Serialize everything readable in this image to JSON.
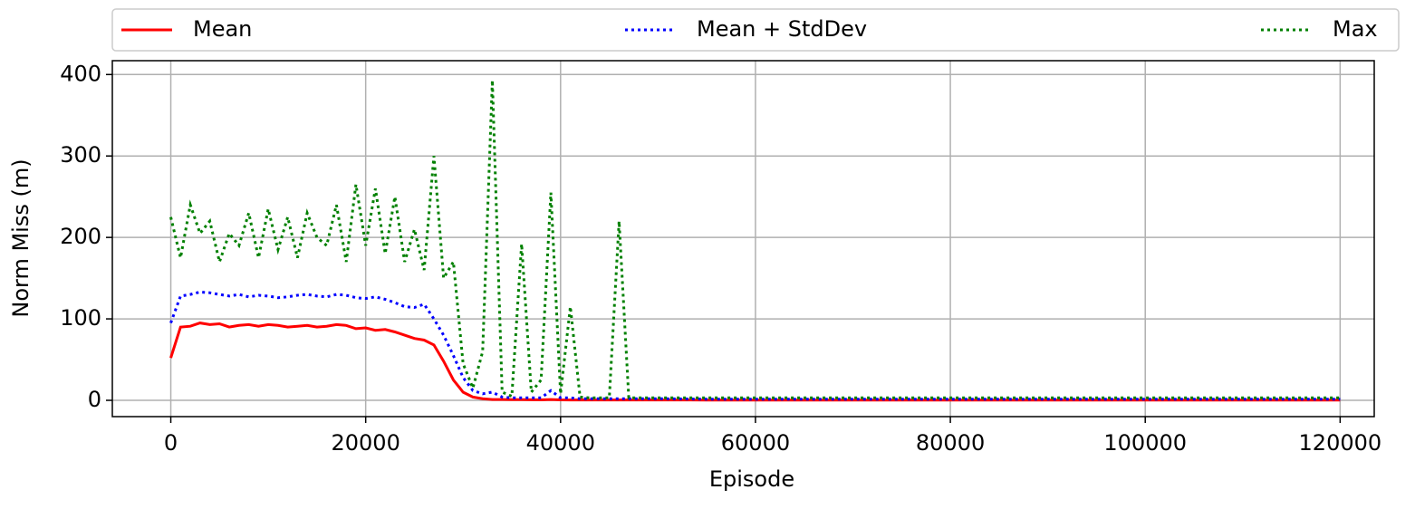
{
  "chart_data": {
    "type": "line",
    "x_label": "Episode",
    "y_label": "Norm Miss (m)",
    "x": [
      0,
      1000,
      2000,
      3000,
      4000,
      5000,
      6000,
      7000,
      8000,
      9000,
      10000,
      11000,
      12000,
      13000,
      14000,
      15000,
      16000,
      17000,
      18000,
      19000,
      20000,
      21000,
      22000,
      23000,
      24000,
      25000,
      26000,
      27000,
      28000,
      29000,
      30000,
      31000,
      32000,
      33000,
      34000,
      35000,
      36000,
      37000,
      38000,
      39000,
      40000,
      41000,
      42000,
      43000,
      44000,
      45000,
      46000,
      47000,
      48000,
      49000,
      50000,
      55000,
      60000,
      65000,
      70000,
      75000,
      80000,
      85000,
      90000,
      95000,
      100000,
      105000,
      110000,
      115000,
      120000
    ],
    "series": [
      {
        "name": "Mean",
        "color": "#ff0000",
        "style": "solid",
        "values": [
          52,
          90,
          91,
          95,
          93,
          94,
          90,
          92,
          93,
          91,
          93,
          92,
          90,
          91,
          92,
          90,
          91,
          93,
          92,
          88,
          89,
          86,
          87,
          84,
          80,
          76,
          74,
          68,
          48,
          25,
          10,
          4,
          2,
          1,
          1,
          0.8,
          0.8,
          0.7,
          0.6,
          1,
          0.6,
          0.5,
          0.5,
          0.5,
          0.5,
          0.5,
          0.5,
          0.5,
          0.5,
          0.5,
          0.5,
          0.3,
          0.3,
          0.3,
          0.3,
          0.3,
          0.3,
          0.3,
          0.3,
          0.3,
          0.3,
          0.3,
          0.3,
          0.3,
          0.3
        ]
      },
      {
        "name": "Mean + StdDev",
        "color": "#0000ff",
        "style": "dotted",
        "values": [
          95,
          128,
          130,
          133,
          132,
          130,
          128,
          130,
          127,
          129,
          128,
          126,
          127,
          129,
          130,
          128,
          127,
          130,
          129,
          126,
          125,
          127,
          124,
          120,
          115,
          114,
          118,
          100,
          80,
          55,
          28,
          12,
          8,
          10,
          4,
          3,
          3,
          3,
          3,
          12,
          3,
          3,
          2,
          2,
          2,
          2,
          2,
          2,
          2,
          2,
          2,
          1.5,
          1.5,
          1.5,
          1.5,
          1.5,
          1.5,
          1.5,
          1.5,
          1.5,
          1.5,
          1.5,
          1.5,
          1.5,
          1.5
        ]
      },
      {
        "name": "Max",
        "color": "#008000",
        "style": "dotted",
        "values": [
          225,
          175,
          240,
          205,
          220,
          170,
          205,
          190,
          230,
          175,
          235,
          185,
          225,
          175,
          230,
          200,
          190,
          240,
          170,
          265,
          190,
          260,
          180,
          250,
          170,
          210,
          160,
          300,
          150,
          170,
          45,
          15,
          60,
          393,
          10,
          5,
          192,
          10,
          25,
          255,
          8,
          115,
          4,
          3,
          3,
          3,
          220,
          3,
          3,
          3,
          3,
          3,
          3,
          3,
          3,
          3,
          3,
          3,
          3,
          3,
          3,
          3,
          3,
          3,
          3
        ]
      }
    ],
    "xlim": [
      -6000,
      123500
    ],
    "xticks": [
      0,
      20000,
      40000,
      60000,
      80000,
      100000,
      120000
    ],
    "ylim": [
      -20,
      417
    ],
    "yticks": [
      0,
      100,
      200,
      300,
      400
    ],
    "grid": true,
    "legend": "top"
  }
}
